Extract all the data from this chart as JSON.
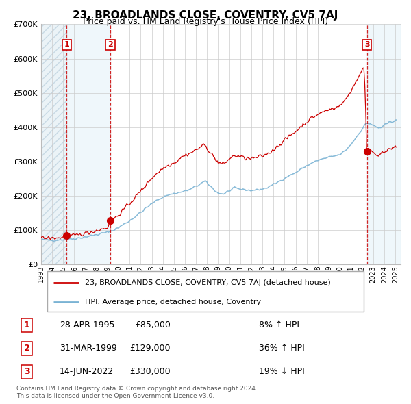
{
  "title": "23, BROADLANDS CLOSE, COVENTRY, CV5 7AJ",
  "subtitle": "Price paid vs. HM Land Registry's House Price Index (HPI)",
  "legend_line1": "23, BROADLANDS CLOSE, COVENTRY, CV5 7AJ (detached house)",
  "legend_line2": "HPI: Average price, detached house, Coventry",
  "footer1": "Contains HM Land Registry data © Crown copyright and database right 2024.",
  "footer2": "This data is licensed under the Open Government Licence v3.0.",
  "sale_color": "#cc0000",
  "hpi_color": "#7ab3d4",
  "ylim": [
    0,
    700000
  ],
  "yticks": [
    0,
    100000,
    200000,
    300000,
    400000,
    500000,
    600000,
    700000
  ],
  "sales": [
    {
      "num": 1,
      "date_label": "28-APR-1995",
      "date_x": 1995.32,
      "price": 85000,
      "pct": "8% ↑ HPI"
    },
    {
      "num": 2,
      "date_label": "31-MAR-1999",
      "date_x": 1999.25,
      "price": 129000,
      "pct": "36% ↑ HPI"
    },
    {
      "num": 3,
      "date_label": "14-JUN-2022",
      "date_x": 2022.45,
      "price": 330000,
      "pct": "19% ↓ HPI"
    }
  ],
  "xlim": [
    1993.0,
    2025.5
  ],
  "xticks": [
    1993,
    1994,
    1995,
    1996,
    1997,
    1998,
    1999,
    2000,
    2001,
    2002,
    2003,
    2004,
    2005,
    2006,
    2007,
    2008,
    2009,
    2010,
    2011,
    2012,
    2013,
    2014,
    2015,
    2016,
    2017,
    2018,
    2019,
    2020,
    2021,
    2022,
    2023,
    2024,
    2025
  ],
  "hpi_key_points": [
    [
      1993.0,
      72000
    ],
    [
      1993.5,
      71000
    ],
    [
      1994.0,
      71500
    ],
    [
      1994.5,
      72000
    ],
    [
      1995.0,
      73000
    ],
    [
      1995.5,
      74000
    ],
    [
      1996.0,
      76000
    ],
    [
      1996.5,
      78000
    ],
    [
      1997.0,
      81000
    ],
    [
      1997.5,
      84000
    ],
    [
      1998.0,
      87000
    ],
    [
      1998.5,
      91000
    ],
    [
      1999.0,
      94000
    ],
    [
      1999.5,
      100000
    ],
    [
      2000.0,
      108000
    ],
    [
      2000.5,
      118000
    ],
    [
      2001.0,
      128000
    ],
    [
      2001.5,
      140000
    ],
    [
      2002.0,
      152000
    ],
    [
      2002.5,
      165000
    ],
    [
      2003.0,
      177000
    ],
    [
      2003.5,
      188000
    ],
    [
      2004.0,
      197000
    ],
    [
      2004.5,
      203000
    ],
    [
      2005.0,
      207000
    ],
    [
      2005.5,
      210000
    ],
    [
      2006.0,
      214000
    ],
    [
      2006.5,
      219000
    ],
    [
      2007.0,
      228000
    ],
    [
      2007.5,
      237000
    ],
    [
      2007.8,
      242000
    ],
    [
      2008.0,
      238000
    ],
    [
      2008.5,
      222000
    ],
    [
      2009.0,
      208000
    ],
    [
      2009.5,
      206000
    ],
    [
      2010.0,
      215000
    ],
    [
      2010.5,
      222000
    ],
    [
      2011.0,
      220000
    ],
    [
      2011.5,
      218000
    ],
    [
      2012.0,
      216000
    ],
    [
      2012.5,
      218000
    ],
    [
      2013.0,
      220000
    ],
    [
      2013.5,
      225000
    ],
    [
      2014.0,
      233000
    ],
    [
      2014.5,
      242000
    ],
    [
      2015.0,
      252000
    ],
    [
      2015.5,
      260000
    ],
    [
      2016.0,
      268000
    ],
    [
      2016.5,
      278000
    ],
    [
      2017.0,
      288000
    ],
    [
      2017.5,
      296000
    ],
    [
      2018.0,
      303000
    ],
    [
      2018.5,
      308000
    ],
    [
      2019.0,
      312000
    ],
    [
      2019.5,
      316000
    ],
    [
      2020.0,
      320000
    ],
    [
      2020.5,
      332000
    ],
    [
      2021.0,
      350000
    ],
    [
      2021.5,
      372000
    ],
    [
      2022.0,
      395000
    ],
    [
      2022.3,
      408000
    ],
    [
      2022.5,
      412000
    ],
    [
      2022.8,
      410000
    ],
    [
      2023.0,
      405000
    ],
    [
      2023.3,
      400000
    ],
    [
      2023.5,
      398000
    ],
    [
      2023.8,
      400000
    ],
    [
      2024.0,
      405000
    ],
    [
      2024.3,
      410000
    ],
    [
      2024.5,
      415000
    ],
    [
      2024.8,
      418000
    ],
    [
      2025.0,
      422000
    ]
  ],
  "red_key_points": [
    [
      1993.0,
      78000
    ],
    [
      1993.5,
      77000
    ],
    [
      1994.0,
      77500
    ],
    [
      1994.5,
      78000
    ],
    [
      1995.0,
      79000
    ],
    [
      1995.32,
      85000
    ],
    [
      1995.5,
      83000
    ],
    [
      1996.0,
      85000
    ],
    [
      1996.5,
      87500
    ],
    [
      1997.0,
      91000
    ],
    [
      1997.5,
      95000
    ],
    [
      1998.0,
      99000
    ],
    [
      1998.5,
      104000
    ],
    [
      1999.0,
      108000
    ],
    [
      1999.25,
      129000
    ],
    [
      1999.5,
      132000
    ],
    [
      2000.0,
      145000
    ],
    [
      2000.5,
      162000
    ],
    [
      2001.0,
      178000
    ],
    [
      2001.5,
      196000
    ],
    [
      2002.0,
      214000
    ],
    [
      2002.5,
      233000
    ],
    [
      2003.0,
      252000
    ],
    [
      2003.5,
      267000
    ],
    [
      2004.0,
      280000
    ],
    [
      2004.5,
      290000
    ],
    [
      2005.0,
      296000
    ],
    [
      2005.3,
      302000
    ],
    [
      2005.5,
      310000
    ],
    [
      2006.0,
      318000
    ],
    [
      2006.5,
      325000
    ],
    [
      2007.0,
      334000
    ],
    [
      2007.5,
      345000
    ],
    [
      2007.75,
      348000
    ],
    [
      2008.0,
      340000
    ],
    [
      2008.5,
      318000
    ],
    [
      2009.0,
      297000
    ],
    [
      2009.5,
      292000
    ],
    [
      2010.0,
      308000
    ],
    [
      2010.5,
      318000
    ],
    [
      2011.0,
      314000
    ],
    [
      2011.5,
      310000
    ],
    [
      2012.0,
      308000
    ],
    [
      2012.5,
      312000
    ],
    [
      2013.0,
      316000
    ],
    [
      2013.5,
      323000
    ],
    [
      2014.0,
      335000
    ],
    [
      2014.5,
      348000
    ],
    [
      2015.0,
      363000
    ],
    [
      2015.5,
      375000
    ],
    [
      2016.0,
      388000
    ],
    [
      2016.5,
      402000
    ],
    [
      2017.0,
      416000
    ],
    [
      2017.5,
      428000
    ],
    [
      2018.0,
      437000
    ],
    [
      2018.5,
      445000
    ],
    [
      2019.0,
      451000
    ],
    [
      2019.5,
      457000
    ],
    [
      2020.0,
      462000
    ],
    [
      2020.5,
      480000
    ],
    [
      2021.0,
      506000
    ],
    [
      2021.5,
      535000
    ],
    [
      2021.8,
      555000
    ],
    [
      2022.0,
      568000
    ],
    [
      2022.2,
      572000
    ],
    [
      2022.45,
      330000
    ],
    [
      2022.5,
      335000
    ],
    [
      2022.8,
      332000
    ],
    [
      2023.0,
      328000
    ],
    [
      2023.3,
      322000
    ],
    [
      2023.5,
      320000
    ],
    [
      2023.8,
      323000
    ],
    [
      2024.0,
      327000
    ],
    [
      2024.3,
      331000
    ],
    [
      2024.5,
      336000
    ],
    [
      2024.8,
      338000
    ],
    [
      2025.0,
      342000
    ]
  ]
}
